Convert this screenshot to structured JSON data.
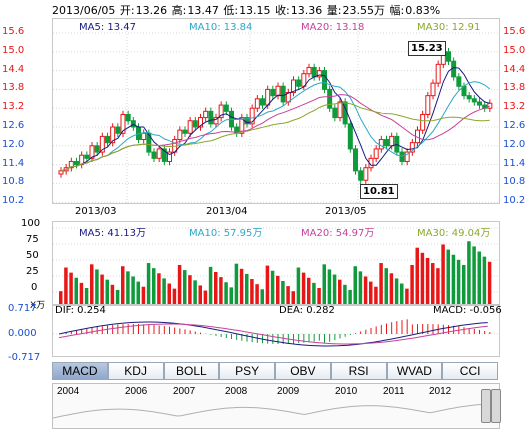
{
  "header": {
    "date": "2013/06/05",
    "open_label": "开:",
    "open": "13.26",
    "high_label": "高:",
    "high": "13.47",
    "low_label": "低:",
    "low": "13.15",
    "close_label": "收:",
    "close": "13.36",
    "volume_label": "量:",
    "volume": "23.55万",
    "change_label": "幅:",
    "change": "0.83%"
  },
  "price_panel": {
    "ma5": "MA5: 13.47",
    "ma10": "MA10: 13.84",
    "ma20": "MA20: 13.18",
    "ma30": "MA30: 12.91",
    "y_ticks": [
      "15.6",
      "15.0",
      "14.4",
      "13.8",
      "13.2",
      "12.6",
      "12.0",
      "11.4",
      "10.8",
      "10.2"
    ],
    "x_dates": [
      "2013/03",
      "2013/04",
      "2013/05"
    ],
    "high_callout": "15.23",
    "low_callout": "10.81"
  },
  "volume_panel": {
    "ma5": "MA5: 41.13万",
    "ma10": "MA10: 57.95万",
    "ma20": "MA20: 54.97万",
    "ma30": "MA30: 49.04万",
    "y_ticks": [
      "100",
      "75",
      "50",
      "25",
      "0"
    ],
    "unit": "X万"
  },
  "macd_panel": {
    "dif": "DIF: 0.254",
    "dea": "DEA: 0.282",
    "macd": "MACD: -0.056",
    "y_ticks": [
      "0.717",
      "0.000",
      "-0.717"
    ]
  },
  "tabs": [
    "MACD",
    "KDJ",
    "BOLL",
    "PSY",
    "OBV",
    "RSI",
    "WVAD",
    "CCI"
  ],
  "timeline": {
    "years": [
      "2004",
      "2006",
      "2007",
      "2008",
      "2009",
      "2010",
      "2011",
      "2012"
    ]
  },
  "colors": {
    "up": "#e81717",
    "down": "#0f9a3c",
    "ma5": "#1a1a80",
    "ma10": "#2aa8c8",
    "ma20": "#c8409a",
    "ma30": "#8aa82a",
    "axis_red": "#e81717",
    "axis_blue": "#1a4fd0"
  }
}
